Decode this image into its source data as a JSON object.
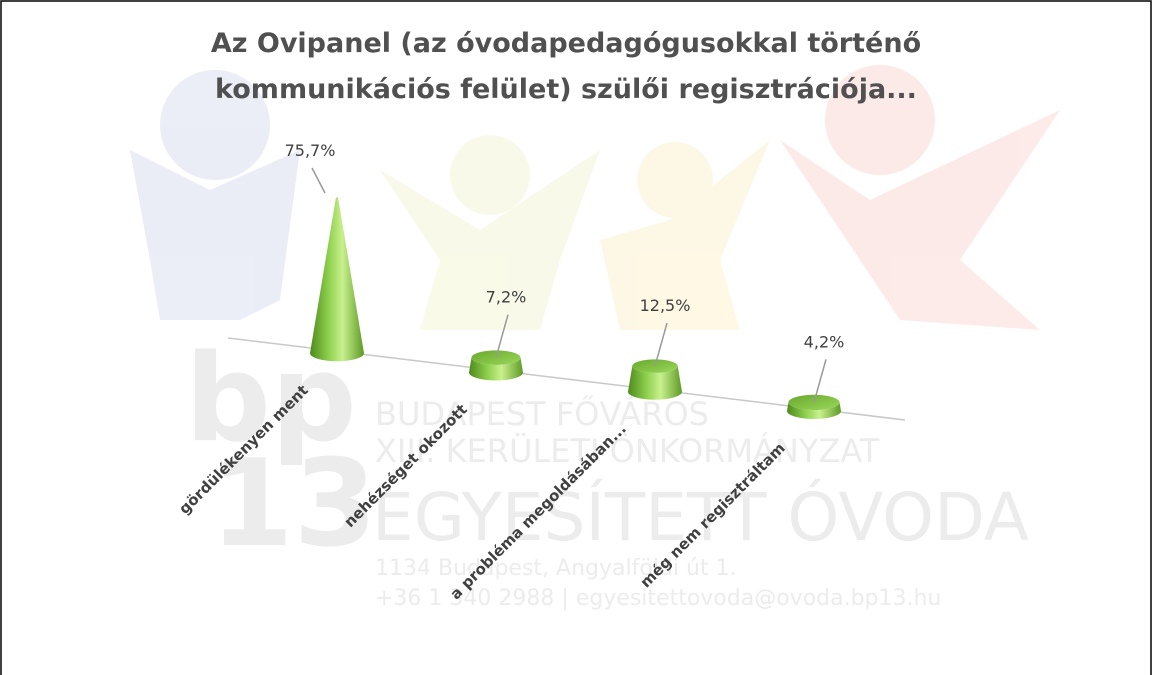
{
  "chart_data": {
    "type": "cone",
    "title_lines": [
      "Az Ovipanel (az óvodapedagógusokkal történő",
      "kommunikációs felület) szülői regisztrációja..."
    ],
    "categories": [
      "gördülékenyen ment",
      "nehézséget okozott",
      "a probléma megoldásában...",
      "még nem regisztráltam"
    ],
    "values": [
      75.7,
      7.2,
      12.5,
      4.2
    ],
    "value_labels": [
      "75,7%",
      "7,2%",
      "12,5%",
      "4,2%"
    ],
    "color": "#8fd14f"
  },
  "watermark": {
    "logo": [
      "bp",
      "13"
    ],
    "lines": [
      "BUDAPEST FŐVÁROS",
      "XIII. KERÜLETI ÖNKORMÁNYZAT",
      "EGYESÍTETT ÓVODA",
      "1134 Budapest, Angyalföldi út 1.",
      "+36 1 340 2988 | egyesitettovoda@ovoda.bp13.hu"
    ]
  }
}
